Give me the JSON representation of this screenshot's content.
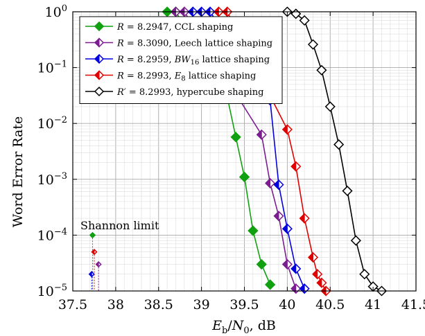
{
  "chart_data": {
    "type": "line",
    "title": "",
    "xlabel": "E_b/N_0,  dB",
    "ylabel": "Word Error Rate",
    "xlim": [
      37.5,
      41.5
    ],
    "ylim": [
      1e-05,
      1
    ],
    "yscale": "log",
    "grid": true,
    "legend_position": "top-left",
    "x_ticks": [
      37.5,
      38,
      38.5,
      39,
      39.5,
      40,
      40.5,
      41,
      41.5
    ],
    "x_tick_labels": [
      "37.5",
      "38",
      "38.5",
      "39",
      "39.5",
      "40",
      "40.5",
      "41",
      "41.5"
    ],
    "y_ticks": [
      1e-05,
      0.0001,
      0.001,
      0.01,
      0.1,
      1
    ],
    "y_tick_labels": [
      "10^−5",
      "10^−4",
      "10^−3",
      "10^−2",
      "10^−1",
      "10^0"
    ],
    "annotation": "Shannon limit",
    "series": [
      {
        "name": "R = 8.2947, CCL shaping",
        "color": "#10a010",
        "marker": "diamond",
        "x": [
          38.6,
          38.7,
          39.3,
          39.4,
          39.5,
          39.6,
          39.7,
          39.8
        ],
        "y": [
          1,
          1,
          0.03,
          0.0057,
          0.0011,
          0.00012,
          3e-05,
          1.3e-05
        ],
        "shannon_x": 37.73,
        "shannon_y": 0.0001
      },
      {
        "name": "R = 8.3090, Leech lattice shaping",
        "color": "#7b1d90",
        "marker": "half-diamond",
        "x": [
          38.7,
          38.8,
          39.7,
          39.8,
          39.9,
          40.0,
          40.1
        ],
        "y": [
          1,
          1,
          0.0063,
          0.00085,
          0.00022,
          3e-05,
          1.1e-05
        ],
        "shannon_x": 37.8,
        "shannon_y": 3e-05
      },
      {
        "name": "R = 8.2959, BW_16 lattice shaping",
        "color": "#0000dd",
        "marker": "half-diamond",
        "x": [
          38.9,
          39.0,
          39.1,
          39.8,
          39.9,
          40.0,
          40.1,
          40.2
        ],
        "y": [
          1,
          1,
          1,
          0.026,
          0.0008,
          0.00013,
          2.5e-05,
          1.1e-05
        ],
        "shannon_x": 37.72,
        "shannon_y": 2e-05
      },
      {
        "name": "R = 8.2993, E_8 lattice shaping",
        "color": "#e00000",
        "marker": "half-diamond",
        "x": [
          39.2,
          39.3,
          40.0,
          40.1,
          40.2,
          40.3,
          40.35,
          40.4,
          40.45
        ],
        "y": [
          1,
          1,
          0.0078,
          0.0017,
          0.0002,
          4e-05,
          2e-05,
          1.4e-05,
          1e-05
        ],
        "shannon_x": 37.75,
        "shannon_y": 5e-05
      },
      {
        "name": "R' = 8.2993, hypercube shaping",
        "color": "#000000",
        "marker": "diamond",
        "x": [
          40.0,
          40.1,
          40.2,
          40.3,
          40.4,
          40.5,
          40.6,
          40.7,
          40.8,
          40.9,
          41.0,
          41.1
        ],
        "y": [
          1,
          0.92,
          0.7,
          0.26,
          0.09,
          0.02,
          0.0042,
          0.00062,
          8e-05,
          2e-05,
          1.2e-05,
          1e-05
        ]
      }
    ]
  }
}
